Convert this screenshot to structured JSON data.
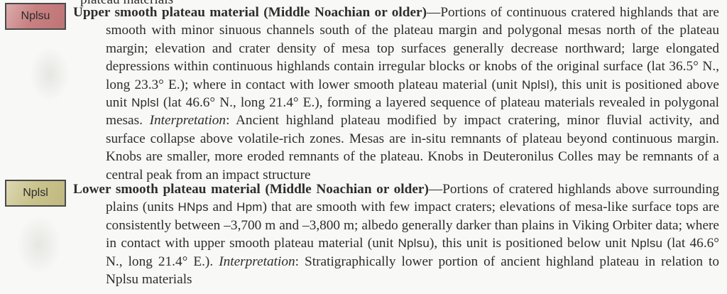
{
  "document": {
    "background": "#f8f8f6",
    "text_color": "#2e2d2b",
    "truncated_top_line": "plateau materials"
  },
  "entries": [
    {
      "unit_label": "Nplsu",
      "swatch": {
        "fill": "#c5797a",
        "border": "#4a4a4a"
      },
      "segments": [
        {
          "style": "bold",
          "text": "Upper smooth plateau material (Middle Noachian or older)"
        },
        {
          "style": "normal",
          "text": "—Portions of continuous cratered highlands that are smooth with minor sinuous channels south of the plateau margin and polygonal mesas north of the plateau margin; elevation and crater density of mesa top surfaces generally decrease northward; large elongated depressions within continuous highlands contain irregular blocks or knobs of the original surface (lat 36.5° N., long 23.3° E.); where in contact with lower smooth plateau material (unit "
        },
        {
          "style": "unit",
          "text": "Nplsl"
        },
        {
          "style": "normal",
          "text": "), this unit is positioned above unit "
        },
        {
          "style": "unit",
          "text": "Nplsl"
        },
        {
          "style": "normal",
          "text": " (lat 46.6° N., long 21.4° E.), forming a layered sequence of plateau materials revealed in polygonal mesas. "
        },
        {
          "style": "italic",
          "text": "Interpretation"
        },
        {
          "style": "normal",
          "text": ": Ancient highland plateau modified by impact cratering, minor fluvial activity, and surface collapse above volatile-rich zones. Mesas are in-situ remnants of plateau beyond continuous margin. Knobs are smaller, more eroded remnants of the plateau. Knobs in Deuteronilus Colles may be remnants of a central peak from an impact structure"
        }
      ]
    },
    {
      "unit_label": "Nplsl",
      "swatch": {
        "fill": "#c7c086",
        "border": "#4a4a4a"
      },
      "segments": [
        {
          "style": "bold",
          "text": "Lower smooth plateau material (Middle Noachian or older)"
        },
        {
          "style": "normal",
          "text": "—Portions of cratered highlands above surrounding plains (units "
        },
        {
          "style": "unit",
          "text": "HNps"
        },
        {
          "style": "normal",
          "text": " and "
        },
        {
          "style": "unit",
          "text": "Hpm"
        },
        {
          "style": "normal",
          "text": ") that are smooth with few impact craters; elevations of mesa-like surface tops are consistently between –3,700 m and –3,800 m; albedo generally darker than plains in Viking Orbiter data; where in contact with upper smooth plateau material (unit "
        },
        {
          "style": "unit",
          "text": "Nplsu"
        },
        {
          "style": "normal",
          "text": "), this unit is positioned below unit "
        },
        {
          "style": "unit",
          "text": "Nplsu"
        },
        {
          "style": "normal",
          "text": " (lat 46.6° N., long 21.4° E.). "
        },
        {
          "style": "italic",
          "text": "Interpretation"
        },
        {
          "style": "normal",
          "text": ": Stratigraphically lower portion of ancient highland plateau in relation to Nplsu materials"
        }
      ]
    }
  ]
}
